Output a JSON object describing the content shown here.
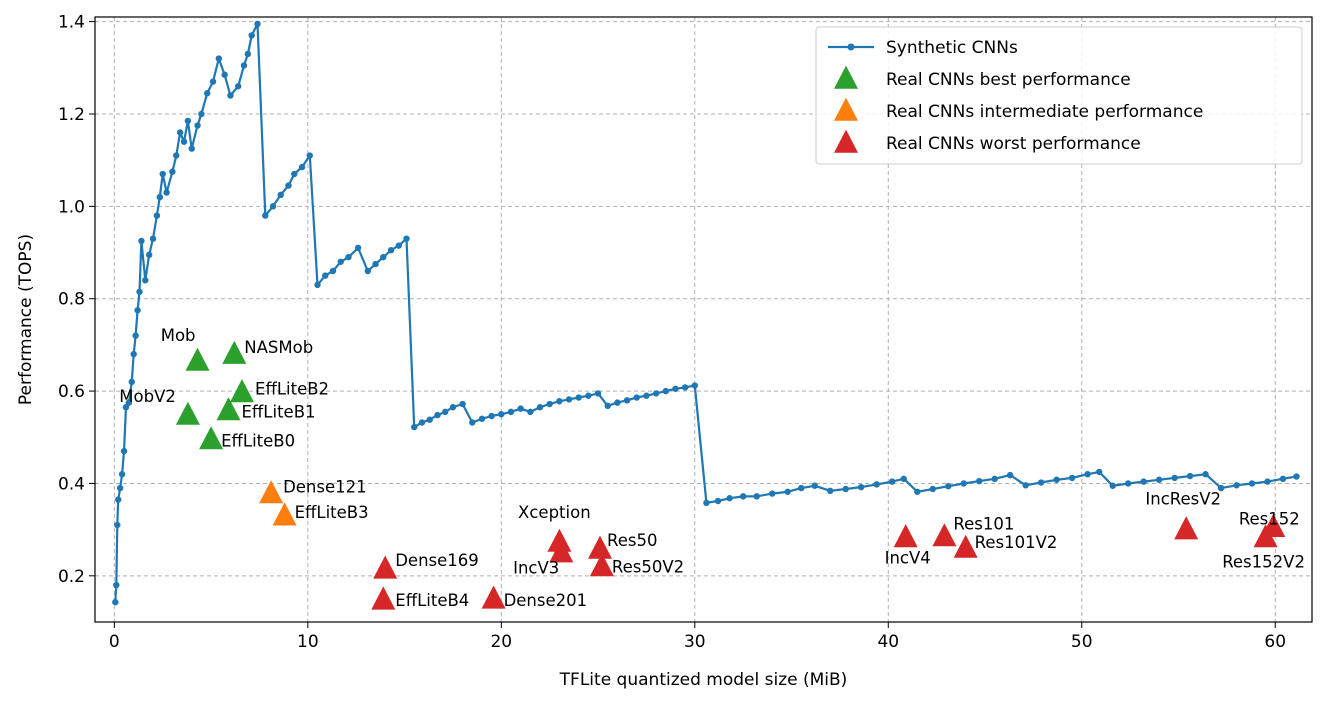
{
  "chart_data": {
    "type": "scatter",
    "title": "",
    "xlabel": "TFLite quantized model size (MiB)",
    "ylabel": "Performance (TOPS)",
    "xlim": [
      -1.0,
      61.9
    ],
    "ylim": [
      0.1,
      1.41
    ],
    "xticks": [
      0,
      10,
      20,
      30,
      40,
      50,
      60
    ],
    "yticks": [
      0.2,
      0.4,
      0.6,
      0.8,
      1.0,
      1.2,
      1.4
    ],
    "grid": true,
    "legend_position": "top-right",
    "line_series": {
      "name": "Synthetic CNNs",
      "color": "#1f77b4",
      "x": [
        0.05,
        0.1,
        0.15,
        0.2,
        0.3,
        0.4,
        0.5,
        0.6,
        0.75,
        0.9,
        1.0,
        1.1,
        1.2,
        1.3,
        1.4,
        1.6,
        1.8,
        2.0,
        2.2,
        2.35,
        2.5,
        2.7,
        3.0,
        3.2,
        3.4,
        3.6,
        3.8,
        4.0,
        4.3,
        4.5,
        4.8,
        5.1,
        5.4,
        5.7,
        6.0,
        6.4,
        6.7,
        6.9,
        7.1,
        7.4,
        7.8,
        8.2,
        8.6,
        9.0,
        9.3,
        9.7,
        10.1,
        10.5,
        10.9,
        11.3,
        11.7,
        12.1,
        12.6,
        13.1,
        13.5,
        13.9,
        14.3,
        14.7,
        15.1,
        15.5,
        15.9,
        16.3,
        16.7,
        17.1,
        17.5,
        18.0,
        18.5,
        19.0,
        19.5,
        20.0,
        20.5,
        21.0,
        21.5,
        22.0,
        22.5,
        23.0,
        23.5,
        24.0,
        24.5,
        25.0,
        25.5,
        26.0,
        26.5,
        27.0,
        27.5,
        28.0,
        28.5,
        29.0,
        29.5,
        30.0,
        30.6,
        31.2,
        31.8,
        32.5,
        33.2,
        34.0,
        34.8,
        35.5,
        36.2,
        37.0,
        37.8,
        38.6,
        39.4,
        40.2,
        40.8,
        41.5,
        42.3,
        43.1,
        43.9,
        44.7,
        45.5,
        46.3,
        47.1,
        47.9,
        48.7,
        49.5,
        50.3,
        50.9,
        51.6,
        52.4,
        53.2,
        54.0,
        54.8,
        55.6,
        56.4,
        57.2,
        58.0,
        58.8,
        59.6,
        60.4,
        61.1
      ],
      "y": [
        0.143,
        0.18,
        0.31,
        0.365,
        0.39,
        0.42,
        0.47,
        0.565,
        0.575,
        0.62,
        0.68,
        0.72,
        0.775,
        0.815,
        0.925,
        0.84,
        0.895,
        0.93,
        0.98,
        1.02,
        1.07,
        1.03,
        1.075,
        1.11,
        1.16,
        1.14,
        1.185,
        1.125,
        1.175,
        1.2,
        1.245,
        1.27,
        1.32,
        1.285,
        1.24,
        1.26,
        1.305,
        1.33,
        1.37,
        1.395,
        0.98,
        1.0,
        1.025,
        1.045,
        1.07,
        1.085,
        1.11,
        0.83,
        0.85,
        0.86,
        0.88,
        0.89,
        0.91,
        0.86,
        0.875,
        0.89,
        0.905,
        0.915,
        0.93,
        0.522,
        0.532,
        0.538,
        0.548,
        0.555,
        0.565,
        0.572,
        0.532,
        0.54,
        0.546,
        0.55,
        0.555,
        0.562,
        0.555,
        0.565,
        0.572,
        0.578,
        0.582,
        0.586,
        0.59,
        0.595,
        0.568,
        0.575,
        0.58,
        0.586,
        0.59,
        0.595,
        0.6,
        0.605,
        0.608,
        0.612,
        0.358,
        0.362,
        0.368,
        0.372,
        0.372,
        0.378,
        0.382,
        0.39,
        0.395,
        0.384,
        0.388,
        0.392,
        0.398,
        0.404,
        0.41,
        0.382,
        0.388,
        0.394,
        0.4,
        0.405,
        0.41,
        0.418,
        0.396,
        0.402,
        0.408,
        0.412,
        0.42,
        0.425,
        0.395,
        0.4,
        0.404,
        0.408,
        0.412,
        0.416,
        0.42,
        0.39,
        0.396,
        0.4,
        0.404,
        0.41,
        0.415
      ]
    },
    "scatter_series": [
      {
        "name": "Real CNNs best performance",
        "color": "#2ca02c",
        "points": [
          {
            "label": "Mob",
            "x": 4.3,
            "y": 0.665
          },
          {
            "label": "NASMob",
            "x": 6.2,
            "y": 0.68
          },
          {
            "label": "MobV2",
            "x": 3.8,
            "y": 0.548
          },
          {
            "label": "EffLiteB2",
            "x": 6.6,
            "y": 0.597
          },
          {
            "label": "EffLiteB1",
            "x": 5.9,
            "y": 0.558
          },
          {
            "label": "EffLiteB0",
            "x": 5.0,
            "y": 0.495
          }
        ]
      },
      {
        "name": "Real CNNs intermediate performance",
        "color": "#ff7f0e",
        "points": [
          {
            "label": "Dense121",
            "x": 8.1,
            "y": 0.378
          },
          {
            "label": "EffLiteB3",
            "x": 8.8,
            "y": 0.33
          }
        ]
      },
      {
        "name": "Real CNNs worst performance",
        "color": "#d62728",
        "points": [
          {
            "label": "Dense169",
            "x": 14.0,
            "y": 0.215
          },
          {
            "label": "EffLiteB4",
            "x": 13.9,
            "y": 0.148
          },
          {
            "label": "Dense201",
            "x": 19.6,
            "y": 0.15
          },
          {
            "label": "Xception",
            "x": 23.0,
            "y": 0.273
          },
          {
            "label": "IncV3",
            "x": 23.1,
            "y": 0.25
          },
          {
            "label": "Res50",
            "x": 25.1,
            "y": 0.258
          },
          {
            "label": "Res50V2",
            "x": 25.2,
            "y": 0.22
          },
          {
            "label": "IncV4",
            "x": 40.9,
            "y": 0.283
          },
          {
            "label": "Res101",
            "x": 42.9,
            "y": 0.285
          },
          {
            "label": "Res101V2",
            "x": 44.0,
            "y": 0.26
          },
          {
            "label": "IncResV2",
            "x": 55.4,
            "y": 0.3
          },
          {
            "label": "Res152",
            "x": 59.9,
            "y": 0.305
          },
          {
            "label": "Res152V2",
            "x": 59.5,
            "y": 0.283
          }
        ]
      }
    ]
  }
}
